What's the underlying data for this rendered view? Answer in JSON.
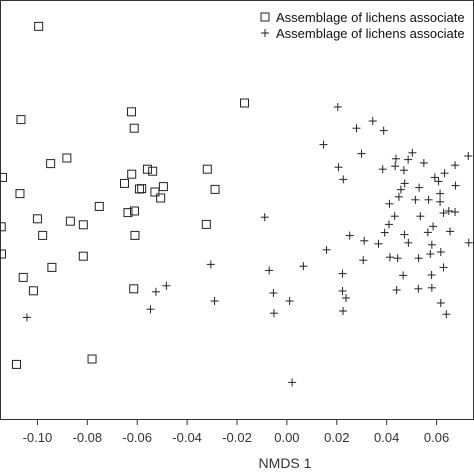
{
  "chart_data": {
    "type": "scatter",
    "title": "",
    "xlabel": "NMDS 1",
    "ylabel": "",
    "xlim": [
      -0.115,
      0.075
    ],
    "ylim": [
      -0.105,
      0.105
    ],
    "xticks": [
      -0.1,
      -0.08,
      -0.06,
      -0.04,
      -0.02,
      0.0,
      0.02,
      0.04,
      0.06
    ],
    "xtick_labels": [
      "-0.10",
      "-0.08",
      "-0.06",
      "-0.04",
      "-0.02",
      "0.00",
      "0.02",
      "0.04",
      "0.06"
    ],
    "grid": false,
    "legend_position": "top-right",
    "series": [
      {
        "name": "Assemblage of lichens associate",
        "marker": "square",
        "points": [
          [
            -0.0995,
            0.0918
          ],
          [
            -0.1066,
            0.0452
          ],
          [
            -0.0623,
            0.0491
          ],
          [
            -0.017,
            0.0535
          ],
          [
            -0.0612,
            0.0409
          ],
          [
            -0.0882,
            0.026
          ],
          [
            -0.0947,
            0.0232
          ],
          [
            -0.0559,
            0.0204
          ],
          [
            -0.0538,
            0.0194
          ],
          [
            -0.0319,
            0.0204
          ],
          [
            -0.114,
            0.0163
          ],
          [
            -0.0622,
            0.0179
          ],
          [
            -0.0651,
            0.0133
          ],
          [
            -0.0591,
            0.0105
          ],
          [
            -0.0582,
            0.0107
          ],
          [
            -0.0495,
            0.0117
          ],
          [
            -0.0529,
            0.009
          ],
          [
            -0.0288,
            0.0103
          ],
          [
            -0.107,
            0.0082
          ],
          [
            -0.0506,
            0.006
          ],
          [
            -0.0752,
            0.0018
          ],
          [
            -0.0637,
            -0.0013
          ],
          [
            -0.0611,
            -0.0005
          ],
          [
            -0.1,
            -0.0044
          ],
          [
            -0.0868,
            -0.0056
          ],
          [
            -0.0816,
            -0.0074
          ],
          [
            -0.1145,
            -0.0084
          ],
          [
            -0.0323,
            -0.0072
          ],
          [
            -0.0979,
            -0.0127
          ],
          [
            -0.0609,
            -0.0127
          ],
          [
            -0.1144,
            -0.022
          ],
          [
            -0.0816,
            -0.0231
          ],
          [
            -0.0942,
            -0.0287
          ],
          [
            -0.1057,
            -0.0337
          ],
          [
            -0.1016,
            -0.0404
          ],
          [
            -0.0614,
            -0.0394
          ],
          [
            -0.0781,
            -0.0745
          ],
          [
            -0.1084,
            -0.0772
          ]
        ]
      },
      {
        "name": "Assemblage of lichens associate",
        "marker": "plus",
        "points": [
          [
            0.0204,
            0.0515
          ],
          [
            0.0279,
            0.0409
          ],
          [
            0.0344,
            0.0445
          ],
          [
            0.0388,
            0.0397
          ],
          [
            0.0147,
            0.0327
          ],
          [
            0.0299,
            0.0282
          ],
          [
            0.0437,
            0.0256
          ],
          [
            0.0486,
            0.0252
          ],
          [
            0.0503,
            0.0286
          ],
          [
            0.0549,
            0.0235
          ],
          [
            0.0674,
            0.0224
          ],
          [
            0.0727,
            0.027
          ],
          [
            0.0207,
            0.0214
          ],
          [
            0.0384,
            0.0204
          ],
          [
            0.0434,
            0.0219
          ],
          [
            0.0469,
            0.0199
          ],
          [
            0.0226,
            0.0153
          ],
          [
            0.0472,
            0.0133
          ],
          [
            0.0593,
            0.0163
          ],
          [
            0.0608,
            0.0143
          ],
          [
            0.0632,
            0.0184
          ],
          [
            0.0457,
            0.0102
          ],
          [
            0.053,
            0.0112
          ],
          [
            0.0614,
            0.0082
          ],
          [
            0.0676,
            0.0122
          ],
          [
            0.0449,
            0.0066
          ],
          [
            0.0515,
            0.0051
          ],
          [
            0.0568,
            0.0051
          ],
          [
            0.0614,
            0.0041
          ],
          [
            0.0411,
            0.0031
          ],
          [
            0.0649,
            -0.0005
          ],
          [
            0.0432,
            -0.0031
          ],
          [
            0.0535,
            -0.0031
          ],
          [
            0.0628,
            -0.0015
          ],
          [
            0.0674,
            -0.001
          ],
          [
            -0.0089,
            -0.0036
          ],
          [
            0.0409,
            -0.0072
          ],
          [
            0.0586,
            -0.0082
          ],
          [
            0.0392,
            -0.0113
          ],
          [
            0.0471,
            -0.0123
          ],
          [
            0.0565,
            -0.0112
          ],
          [
            0.0654,
            -0.0107
          ],
          [
            0.0252,
            -0.0128
          ],
          [
            0.031,
            -0.0154
          ],
          [
            0.0367,
            -0.0169
          ],
          [
            0.0487,
            -0.0164
          ],
          [
            0.0581,
            -0.0174
          ],
          [
            0.0729,
            -0.0164
          ],
          [
            0.0159,
            -0.0199
          ],
          [
            0.0413,
            -0.0236
          ],
          [
            0.0528,
            -0.0241
          ],
          [
            0.0575,
            -0.022
          ],
          [
            0.0617,
            -0.021
          ],
          [
            0.0306,
            -0.0251
          ],
          [
            0.0444,
            -0.0241
          ],
          [
            -0.0305,
            -0.0272
          ],
          [
            -0.0071,
            -0.0302
          ],
          [
            0.0066,
            -0.0281
          ],
          [
            0.0223,
            -0.0318
          ],
          [
            0.0466,
            -0.0327
          ],
          [
            0.058,
            -0.0325
          ],
          [
            0.0628,
            -0.0287
          ],
          [
            -0.0483,
            -0.0379
          ],
          [
            -0.0525,
            -0.0409
          ],
          [
            -0.0054,
            -0.0415
          ],
          [
            0.0223,
            -0.0405
          ],
          [
            0.044,
            -0.04
          ],
          [
            0.0527,
            -0.0394
          ],
          [
            0.0581,
            -0.0389
          ],
          [
            0.0237,
            -0.044
          ],
          [
            -0.029,
            -0.0455
          ],
          [
            0.0011,
            -0.0455
          ],
          [
            0.0617,
            -0.0465
          ],
          [
            -0.0547,
            -0.0496
          ],
          [
            -0.0052,
            -0.0516
          ],
          [
            -0.1042,
            -0.0537
          ],
          [
            0.0225,
            -0.0505
          ],
          [
            0.0639,
            -0.0521
          ],
          [
            0.0021,
            -0.0862
          ]
        ]
      }
    ]
  }
}
